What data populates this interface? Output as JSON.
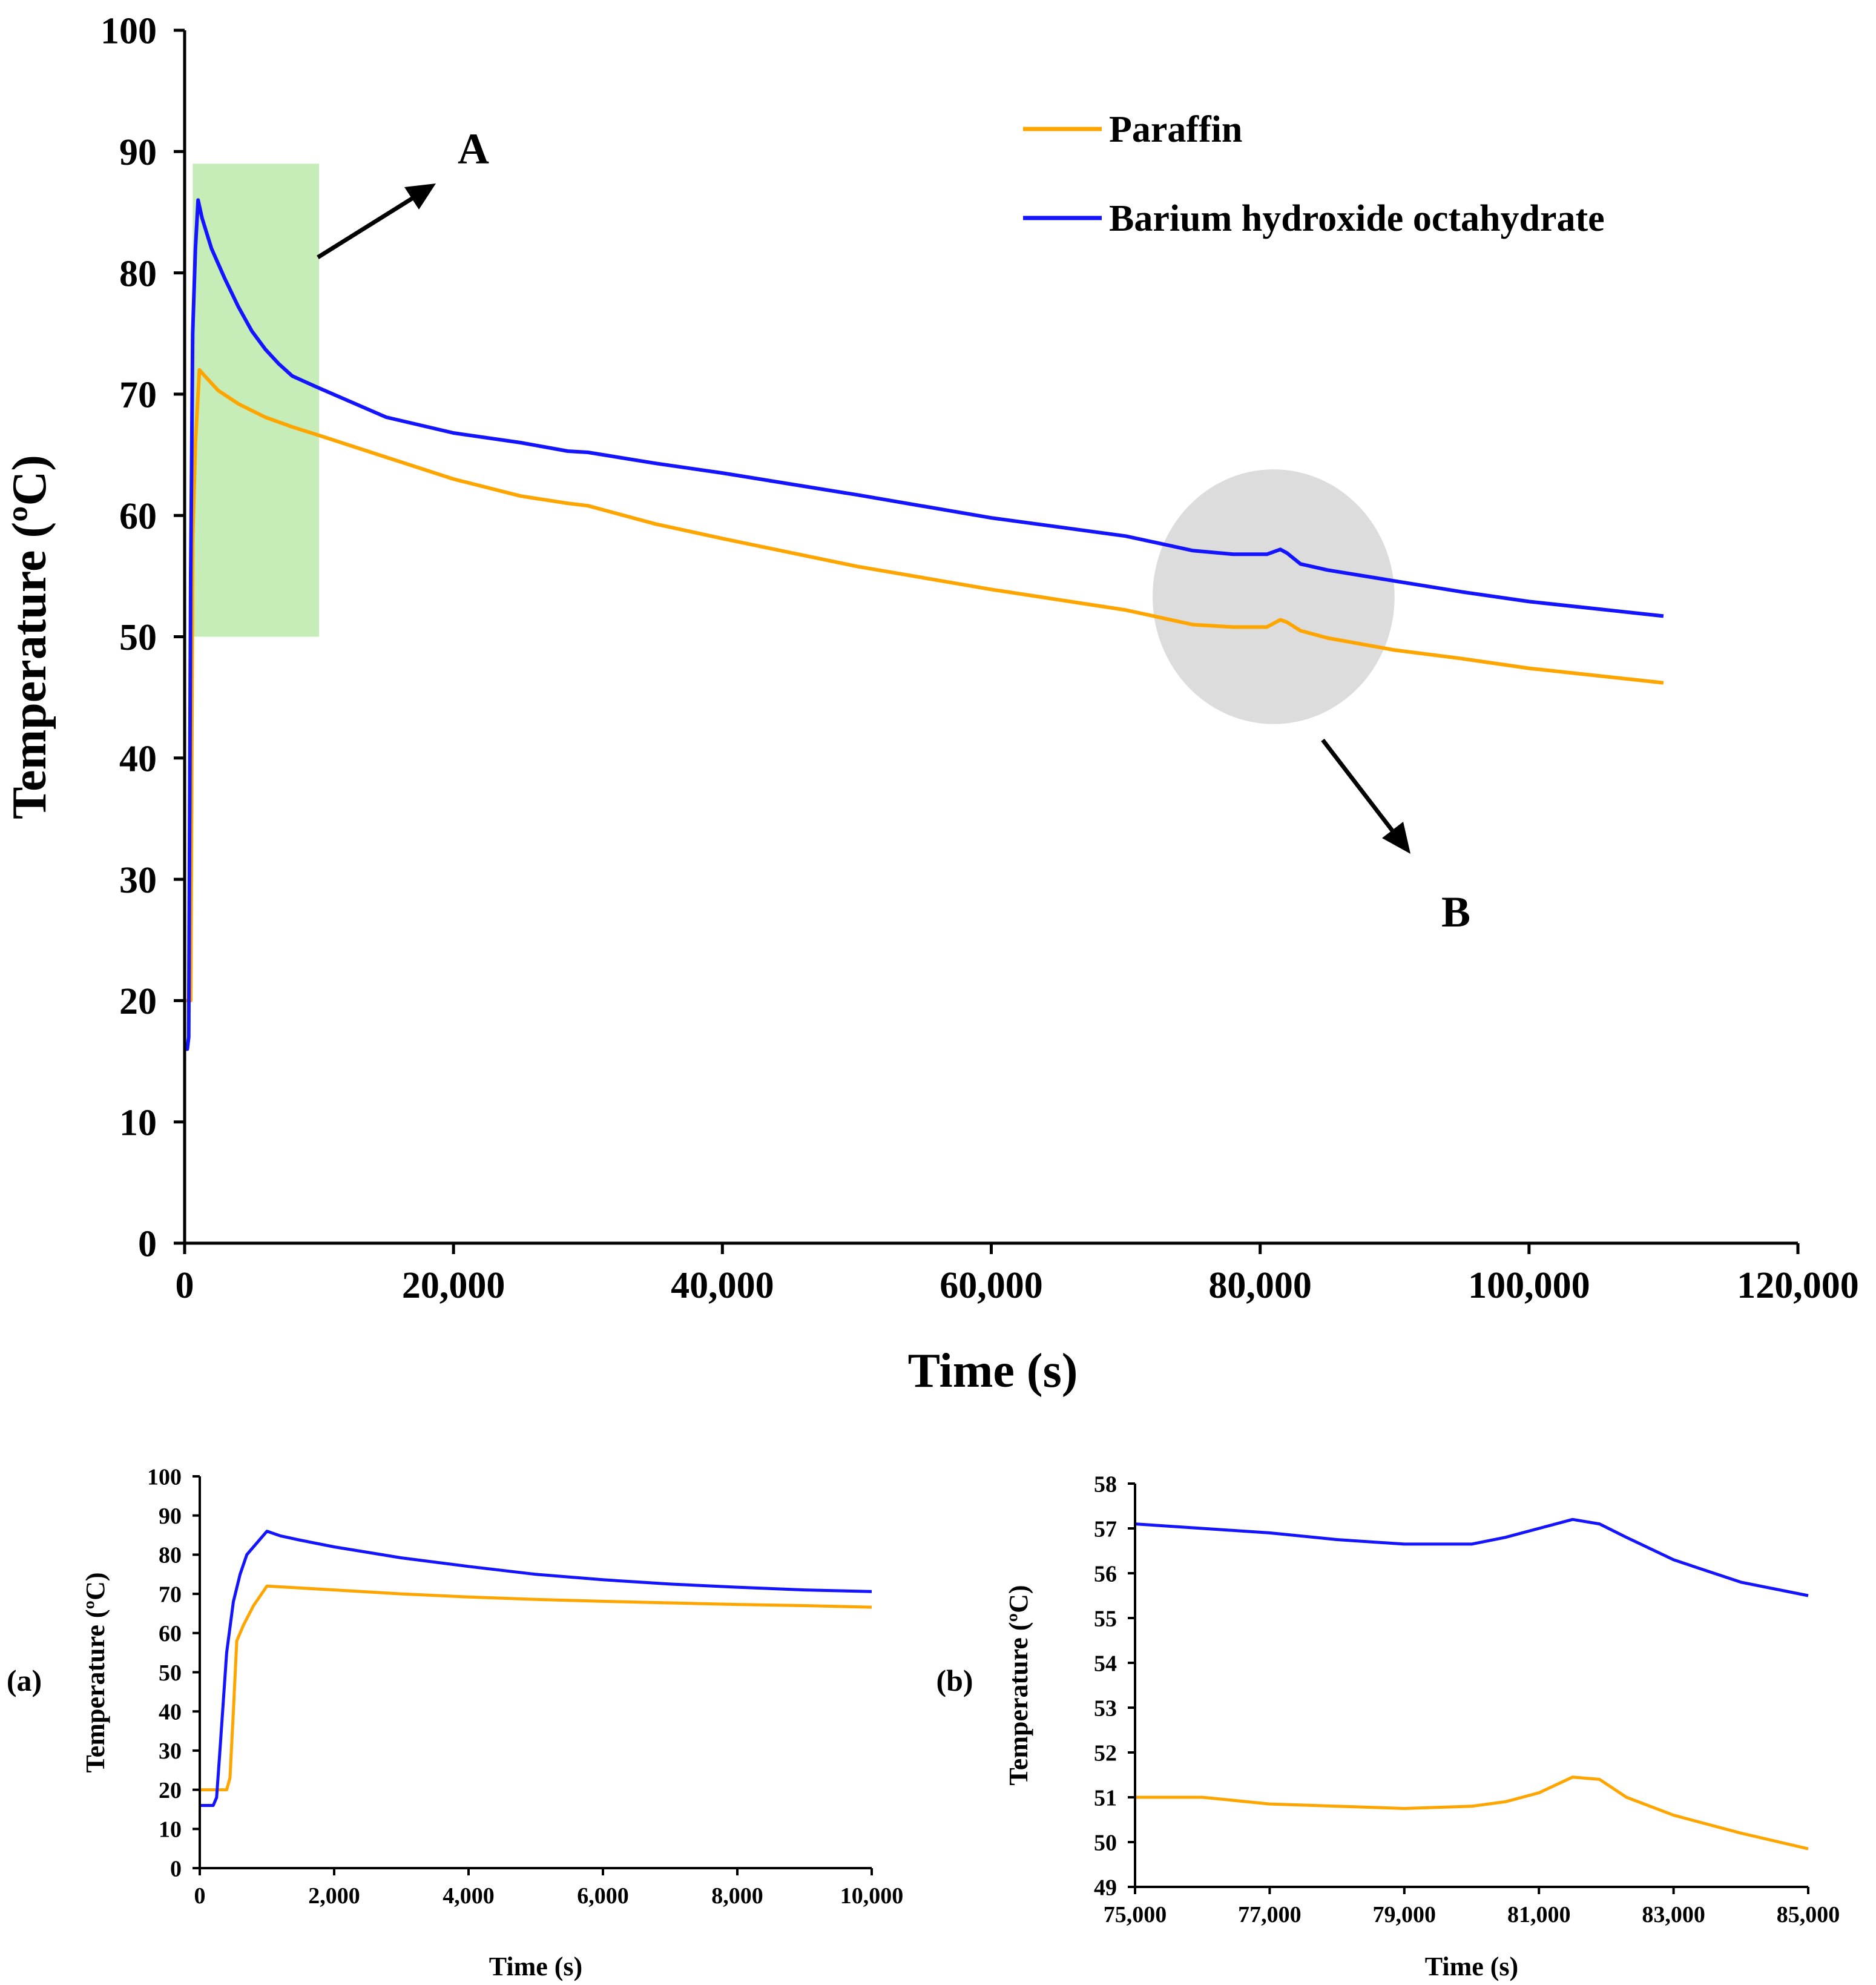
{
  "figure": {
    "background": "#ffffff",
    "axis_color": "#000000"
  },
  "colors": {
    "paraffin": "#ffa500",
    "barium": "#1414ff",
    "highlight_a": "#c6ecb8",
    "highlight_b": "#dcdcdc"
  },
  "chart_data": [
    {
      "id": "main",
      "type": "line",
      "title": "",
      "xlabel": "Time (s)",
      "ylabel": "Temperature (ºC)",
      "xlim": [
        0,
        120000
      ],
      "ylim": [
        0,
        100
      ],
      "xticks": [
        0,
        20000,
        40000,
        60000,
        80000,
        100000,
        120000
      ],
      "xtick_labels": [
        "0",
        "20,000",
        "40,000",
        "60,000",
        "80,000",
        "100,000",
        "120,000"
      ],
      "yticks": [
        0,
        10,
        20,
        30,
        40,
        50,
        60,
        70,
        80,
        90,
        100
      ],
      "ytick_labels": [
        "0",
        "10",
        "20",
        "30",
        "40",
        "50",
        "60",
        "70",
        "80",
        "90",
        "100"
      ],
      "grid": false,
      "legend": {
        "position": "top-right",
        "entries": [
          "Paraffin",
          "Barium hydroxide octahydrate"
        ]
      },
      "series": [
        {
          "name": "Paraffin",
          "color": "#ffa500",
          "points": [
            [
              0,
              20
            ],
            [
              300,
              20
            ],
            [
              450,
              20
            ],
            [
              600,
              58
            ],
            [
              800,
              66
            ],
            [
              1100,
              72
            ],
            [
              1500,
              71.5
            ],
            [
              2500,
              70.3
            ],
            [
              4000,
              69.2
            ],
            [
              6000,
              68.1
            ],
            [
              8000,
              67.3
            ],
            [
              10000,
              66.6
            ],
            [
              15000,
              64.8
            ],
            [
              20000,
              63.0
            ],
            [
              25000,
              61.6
            ],
            [
              28500,
              61.0
            ],
            [
              30000,
              60.8
            ],
            [
              35000,
              59.3
            ],
            [
              40000,
              58.1
            ],
            [
              50000,
              55.8
            ],
            [
              60000,
              53.9
            ],
            [
              70000,
              52.2
            ],
            [
              75000,
              51.0
            ],
            [
              78000,
              50.8
            ],
            [
              80500,
              50.8
            ],
            [
              81500,
              51.4
            ],
            [
              82000,
              51.2
            ],
            [
              83000,
              50.5
            ],
            [
              85000,
              49.9
            ],
            [
              90000,
              48.9
            ],
            [
              95000,
              48.2
            ],
            [
              100000,
              47.4
            ],
            [
              105000,
              46.8
            ],
            [
              110000,
              46.2
            ]
          ]
        },
        {
          "name": "Barium hydroxide octahydrate",
          "color": "#1414ff",
          "points": [
            [
              0,
              16
            ],
            [
              200,
              16
            ],
            [
              300,
              17
            ],
            [
              450,
              55
            ],
            [
              600,
              75
            ],
            [
              800,
              82
            ],
            [
              1000,
              86
            ],
            [
              1300,
              84.5
            ],
            [
              2000,
              82.0
            ],
            [
              3000,
              79.5
            ],
            [
              4000,
              77.2
            ],
            [
              5000,
              75.2
            ],
            [
              6000,
              73.7
            ],
            [
              7000,
              72.5
            ],
            [
              8000,
              71.5
            ],
            [
              10000,
              70.5
            ],
            [
              15000,
              68.1
            ],
            [
              20000,
              66.8
            ],
            [
              25000,
              66.0
            ],
            [
              28500,
              65.3
            ],
            [
              30000,
              65.2
            ],
            [
              35000,
              64.3
            ],
            [
              40000,
              63.5
            ],
            [
              50000,
              61.7
            ],
            [
              60000,
              59.8
            ],
            [
              70000,
              58.3
            ],
            [
              75000,
              57.1
            ],
            [
              78000,
              56.8
            ],
            [
              80500,
              56.8
            ],
            [
              81500,
              57.2
            ],
            [
              82000,
              56.9
            ],
            [
              83000,
              56.0
            ],
            [
              85000,
              55.5
            ],
            [
              90000,
              54.6
            ],
            [
              95000,
              53.7
            ],
            [
              100000,
              52.9
            ],
            [
              105000,
              52.3
            ],
            [
              110000,
              51.7
            ]
          ]
        }
      ],
      "annotations": {
        "box_a": {
          "label": "A",
          "x_range": [
            600,
            10000
          ],
          "y_range": [
            50,
            89
          ]
        },
        "ellipse_b": {
          "label": "B",
          "center": [
            81000,
            53.3
          ],
          "radius_x": 9000,
          "radius_y": 10.5
        }
      }
    },
    {
      "id": "inset_a",
      "type": "line",
      "panel_label": "(a)",
      "xlabel": "Time (s)",
      "ylabel": "Temperature (ºC)",
      "xlim": [
        0,
        10000
      ],
      "ylim": [
        0,
        100
      ],
      "xticks": [
        0,
        2000,
        4000,
        6000,
        8000,
        10000
      ],
      "xtick_labels": [
        "0",
        "2,000",
        "4,000",
        "6,000",
        "8,000",
        "10,000"
      ],
      "yticks": [
        0,
        10,
        20,
        30,
        40,
        50,
        60,
        70,
        80,
        90,
        100
      ],
      "ytick_labels": [
        "0",
        "10",
        "20",
        "30",
        "40",
        "50",
        "60",
        "70",
        "80",
        "90",
        "100"
      ],
      "grid": false,
      "series": [
        {
          "name": "Paraffin",
          "color": "#ffa500",
          "points": [
            [
              0,
              20
            ],
            [
              200,
              20
            ],
            [
              400,
              20
            ],
            [
              450,
              23
            ],
            [
              500,
              40
            ],
            [
              550,
              58
            ],
            [
              650,
              62
            ],
            [
              800,
              67
            ],
            [
              1000,
              72
            ],
            [
              1500,
              71.5
            ],
            [
              2000,
              71.0
            ],
            [
              3000,
              70.0
            ],
            [
              4000,
              69.2
            ],
            [
              5000,
              68.6
            ],
            [
              6000,
              68.1
            ],
            [
              7000,
              67.7
            ],
            [
              8000,
              67.3
            ],
            [
              9000,
              67.0
            ],
            [
              10000,
              66.6
            ]
          ]
        },
        {
          "name": "Barium hydroxide octahydrate",
          "color": "#1414ff",
          "points": [
            [
              0,
              16
            ],
            [
              200,
              16
            ],
            [
              250,
              18
            ],
            [
              300,
              30
            ],
            [
              400,
              55
            ],
            [
              500,
              68
            ],
            [
              600,
              75
            ],
            [
              700,
              80
            ],
            [
              900,
              84
            ],
            [
              1000,
              86
            ],
            [
              1200,
              84.8
            ],
            [
              1500,
              83.7
            ],
            [
              2000,
              82.0
            ],
            [
              3000,
              79.2
            ],
            [
              4000,
              77.0
            ],
            [
              5000,
              75.0
            ],
            [
              6000,
              73.6
            ],
            [
              7000,
              72.5
            ],
            [
              8000,
              71.7
            ],
            [
              9000,
              71.0
            ],
            [
              10000,
              70.6
            ]
          ]
        }
      ]
    },
    {
      "id": "inset_b",
      "type": "line",
      "panel_label": "(b)",
      "xlabel": "Time (s)",
      "ylabel": "Temperature (ºC)",
      "xlim": [
        75000,
        85000
      ],
      "ylim": [
        49,
        58
      ],
      "xticks": [
        75000,
        77000,
        79000,
        81000,
        83000,
        85000
      ],
      "xtick_labels": [
        "75,000",
        "77,000",
        "79,000",
        "81,000",
        "83,000",
        "85,000"
      ],
      "yticks": [
        49,
        50,
        51,
        52,
        53,
        54,
        55,
        56,
        57,
        58
      ],
      "ytick_labels": [
        "49",
        "50",
        "51",
        "52",
        "53",
        "54",
        "55",
        "56",
        "57",
        "58"
      ],
      "grid": false,
      "series": [
        {
          "name": "Paraffin",
          "color": "#ffa500",
          "points": [
            [
              75000,
              51.0
            ],
            [
              76000,
              51.0
            ],
            [
              77000,
              50.85
            ],
            [
              78000,
              50.8
            ],
            [
              79000,
              50.75
            ],
            [
              80000,
              50.8
            ],
            [
              80500,
              50.9
            ],
            [
              81000,
              51.1
            ],
            [
              81500,
              51.45
            ],
            [
              81900,
              51.4
            ],
            [
              82300,
              51.0
            ],
            [
              83000,
              50.6
            ],
            [
              84000,
              50.2
            ],
            [
              85000,
              49.85
            ]
          ]
        },
        {
          "name": "Barium hydroxide octahydrate",
          "color": "#1414ff",
          "points": [
            [
              75000,
              57.1
            ],
            [
              76000,
              57.0
            ],
            [
              77000,
              56.9
            ],
            [
              78000,
              56.75
            ],
            [
              79000,
              56.65
            ],
            [
              80000,
              56.65
            ],
            [
              80500,
              56.8
            ],
            [
              81000,
              57.0
            ],
            [
              81500,
              57.2
            ],
            [
              81900,
              57.1
            ],
            [
              82300,
              56.8
            ],
            [
              83000,
              56.3
            ],
            [
              84000,
              55.8
            ],
            [
              85000,
              55.5
            ]
          ]
        }
      ]
    }
  ]
}
